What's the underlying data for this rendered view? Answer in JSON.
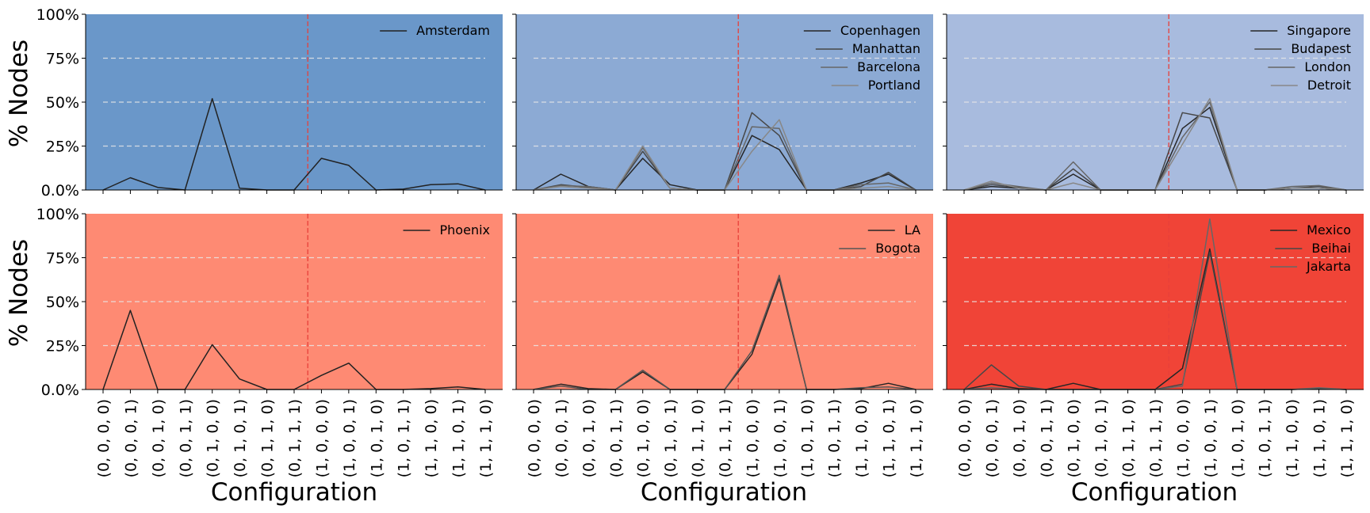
{
  "figure": {
    "ylabel": "% Nodes",
    "xlabel": "Configuration"
  },
  "chart_data": [
    {
      "type": "line",
      "panel": "top-left",
      "background": "#6a97c9",
      "x": [
        "(0, 0, 0, 0)",
        "(0, 0, 0, 1)",
        "(0, 0, 1, 0)",
        "(0, 0, 1, 1)",
        "(0, 1, 0, 0)",
        "(0, 1, 0, 1)",
        "(0, 1, 1, 0)",
        "(0, 1, 1, 1)",
        "(1, 0, 0, 0)",
        "(1, 0, 0, 1)",
        "(1, 0, 1, 0)",
        "(1, 0, 1, 1)",
        "(1, 1, 0, 0)",
        "(1, 1, 0, 1)",
        "(1, 1, 1, 0)"
      ],
      "ylim": [
        0,
        100
      ],
      "yticks": [
        "0.0%",
        "25%",
        "50%",
        "75%",
        "100%"
      ],
      "grid": "dashed horizontal at 25, 50, 75",
      "divider_after_index": 7.5,
      "legend_position": "top-right",
      "series": [
        {
          "name": "Amsterdam",
          "color": "#222222",
          "values": [
            0,
            7,
            1.5,
            0,
            52,
            1,
            0,
            0,
            18,
            14,
            0,
            0.5,
            3,
            3.5,
            0
          ]
        }
      ]
    },
    {
      "type": "line",
      "panel": "top-middle",
      "background": "#8caad4",
      "x": [
        "(0, 0, 0, 0)",
        "(0, 0, 0, 1)",
        "(0, 0, 1, 0)",
        "(0, 0, 1, 1)",
        "(0, 1, 0, 0)",
        "(0, 1, 0, 1)",
        "(0, 1, 1, 0)",
        "(0, 1, 1, 1)",
        "(1, 0, 0, 0)",
        "(1, 0, 0, 1)",
        "(1, 0, 1, 0)",
        "(1, 0, 1, 1)",
        "(1, 1, 0, 0)",
        "(1, 1, 0, 1)",
        "(1, 1, 1, 0)"
      ],
      "ylim": [
        0,
        100
      ],
      "yticks": [
        "0.0%",
        "25%",
        "50%",
        "75%",
        "100%"
      ],
      "grid": "dashed horizontal at 25, 50, 75",
      "divider_after_index": 7.5,
      "legend_position": "top-right",
      "series": [
        {
          "name": "Copenhagen",
          "color": "#262626",
          "values": [
            0,
            9,
            2,
            0,
            18,
            3,
            0,
            0,
            31,
            23,
            0,
            0,
            4,
            9,
            0
          ]
        },
        {
          "name": "Manhattan",
          "color": "#474747",
          "values": [
            0,
            3,
            1.5,
            0,
            22,
            1,
            0,
            0,
            44,
            31,
            0,
            0,
            2,
            10,
            0
          ]
        },
        {
          "name": "Barcelona",
          "color": "#666666",
          "values": [
            0,
            2.5,
            2,
            0,
            24,
            1,
            0,
            0,
            36,
            35,
            0,
            0,
            3,
            4,
            0
          ]
        },
        {
          "name": "Portland",
          "color": "#888888",
          "values": [
            0,
            2,
            1,
            0,
            25,
            1,
            0,
            0,
            22,
            40,
            0,
            0,
            1,
            2,
            0
          ]
        }
      ]
    },
    {
      "type": "line",
      "panel": "top-right",
      "background": "#a8bbde",
      "x": [
        "(0, 0, 0, 0)",
        "(0, 0, 0, 1)",
        "(0, 0, 1, 0)",
        "(0, 0, 1, 1)",
        "(0, 1, 0, 0)",
        "(0, 1, 0, 1)",
        "(0, 1, 1, 0)",
        "(0, 1, 1, 1)",
        "(1, 0, 0, 0)",
        "(1, 0, 0, 1)",
        "(1, 0, 1, 0)",
        "(1, 0, 1, 1)",
        "(1, 1, 0, 0)",
        "(1, 1, 0, 1)",
        "(1, 1, 1, 0)"
      ],
      "ylim": [
        0,
        100
      ],
      "yticks": [
        "0.0%",
        "25%",
        "50%",
        "75%",
        "100%"
      ],
      "grid": "dashed horizontal at 25, 50, 75",
      "divider_after_index": 7.5,
      "legend_position": "top-right",
      "series": [
        {
          "name": "Singapore",
          "color": "#262626",
          "values": [
            0,
            2,
            1,
            0,
            9,
            0,
            0,
            0,
            35,
            47,
            0,
            0,
            1,
            1,
            0
          ]
        },
        {
          "name": "Budapest",
          "color": "#474747",
          "values": [
            0,
            3,
            1.5,
            0,
            12,
            0,
            0,
            0,
            44,
            41,
            0,
            0,
            1,
            2,
            0
          ]
        },
        {
          "name": "London",
          "color": "#666666",
          "values": [
            0,
            4,
            2,
            0,
            16,
            0,
            0,
            0,
            30,
            50,
            0,
            0,
            2,
            2.5,
            0
          ]
        },
        {
          "name": "Detroit",
          "color": "#888888",
          "values": [
            0,
            5,
            1,
            0,
            4,
            0,
            0,
            0,
            26,
            52,
            0,
            0,
            1,
            1,
            0
          ]
        }
      ]
    },
    {
      "type": "line",
      "panel": "bottom-left",
      "background": "#fe8a73",
      "x": [
        "(0, 0, 0, 0)",
        "(0, 0, 0, 1)",
        "(0, 0, 1, 0)",
        "(0, 0, 1, 1)",
        "(0, 1, 0, 0)",
        "(0, 1, 0, 1)",
        "(0, 1, 1, 0)",
        "(0, 1, 1, 1)",
        "(1, 0, 0, 0)",
        "(1, 0, 0, 1)",
        "(1, 0, 1, 0)",
        "(1, 0, 1, 1)",
        "(1, 1, 0, 0)",
        "(1, 1, 0, 1)",
        "(1, 1, 1, 0)"
      ],
      "ylim": [
        0,
        100
      ],
      "yticks": [
        "0.0%",
        "25%",
        "50%",
        "75%",
        "100%"
      ],
      "grid": "dashed horizontal at 25, 50, 75",
      "divider_after_index": 7.5,
      "legend_position": "top-right",
      "series": [
        {
          "name": "Phoenix",
          "color": "#222222",
          "values": [
            0,
            45,
            0,
            0,
            25.5,
            6,
            0,
            0,
            8,
            15,
            0,
            0,
            0.5,
            1.5,
            0
          ]
        }
      ]
    },
    {
      "type": "line",
      "panel": "bottom-middle",
      "background": "#fe8a73",
      "x": [
        "(0, 0, 0, 0)",
        "(0, 0, 0, 1)",
        "(0, 0, 1, 0)",
        "(0, 0, 1, 1)",
        "(0, 1, 0, 0)",
        "(0, 1, 0, 1)",
        "(0, 1, 1, 0)",
        "(0, 1, 1, 1)",
        "(1, 0, 0, 0)",
        "(1, 0, 0, 1)",
        "(1, 0, 1, 0)",
        "(1, 0, 1, 1)",
        "(1, 1, 0, 0)",
        "(1, 1, 0, 1)",
        "(1, 1, 1, 0)"
      ],
      "ylim": [
        0,
        100
      ],
      "yticks": [
        "0.0%",
        "25%",
        "50%",
        "75%",
        "100%"
      ],
      "grid": "dashed horizontal at 25, 50, 75",
      "divider_after_index": 7.5,
      "legend_position": "top-right",
      "series": [
        {
          "name": "LA",
          "color": "#262626",
          "values": [
            0,
            3,
            0.5,
            0,
            10,
            0,
            0,
            0,
            20,
            63,
            0,
            0,
            0.5,
            3.5,
            0
          ]
        },
        {
          "name": "Bogota",
          "color": "#555555",
          "values": [
            0,
            2,
            0,
            0,
            11,
            0,
            0,
            0,
            22,
            65,
            0,
            0,
            1,
            1.5,
            0
          ]
        }
      ]
    },
    {
      "type": "line",
      "panel": "bottom-right",
      "background": "#f04437",
      "x": [
        "(0, 0, 0, 0)",
        "(0, 0, 0, 1)",
        "(0, 0, 1, 0)",
        "(0, 0, 1, 1)",
        "(0, 1, 0, 0)",
        "(0, 1, 0, 1)",
        "(0, 1, 1, 0)",
        "(0, 1, 1, 1)",
        "(1, 0, 0, 0)",
        "(1, 0, 0, 1)",
        "(1, 0, 1, 0)",
        "(1, 0, 1, 1)",
        "(1, 1, 0, 0)",
        "(1, 1, 0, 1)",
        "(1, 1, 1, 0)"
      ],
      "ylim": [
        0,
        100
      ],
      "yticks": [
        "0.0%",
        "25%",
        "50%",
        "75%",
        "100%"
      ],
      "grid": "dashed horizontal at 25, 50, 75",
      "divider_after_index": 7.5,
      "legend_position": "top-right",
      "series": [
        {
          "name": "Mexico",
          "color": "#262626",
          "values": [
            0,
            3,
            0.5,
            0,
            3.5,
            0,
            0,
            0,
            12,
            80,
            0,
            0,
            0,
            0.5,
            0
          ]
        },
        {
          "name": "Beihai",
          "color": "#474747",
          "values": [
            0,
            14,
            2,
            0,
            0,
            0,
            0,
            0,
            3,
            78,
            0,
            0,
            0,
            0.5,
            0
          ]
        },
        {
          "name": "Jakarta",
          "color": "#666666",
          "values": [
            0,
            1,
            0,
            0,
            0,
            0,
            0,
            0,
            2,
            97,
            0,
            0,
            0,
            1,
            0
          ]
        }
      ]
    }
  ]
}
